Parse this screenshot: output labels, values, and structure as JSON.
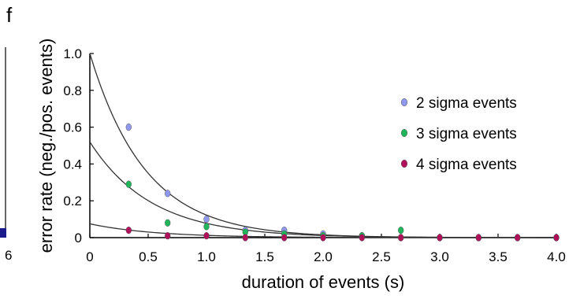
{
  "panel_letter": "f",
  "neighbor_fragment": {
    "tick_labels": [
      "6"
    ],
    "bar_color": "#1a1a8c"
  },
  "chart_data": {
    "type": "scatter",
    "title": "",
    "xlabel": "duration of events (s)",
    "ylabel": "error rate (neg./pos. events)",
    "xlim": [
      0,
      4.0
    ],
    "ylim": [
      0,
      1.0
    ],
    "x_ticks": [
      0,
      0.5,
      1.0,
      1.5,
      2.0,
      2.5,
      3.0,
      3.5,
      4.0
    ],
    "x_tick_labels": [
      "0",
      "0.5",
      "1.0",
      "1.5",
      "2.0",
      "2.5",
      "3.0",
      "3.5",
      "4.0"
    ],
    "y_ticks": [
      0,
      0.2,
      0.4,
      0.6,
      0.8,
      1.0
    ],
    "y_tick_labels": [
      "0",
      "0.2",
      "0.4",
      "0.6",
      "0.8",
      "1.0"
    ],
    "grid": false,
    "legend_position": "right",
    "series": [
      {
        "name": "2 sigma events",
        "color": "#8f97ee",
        "x": [
          0.333,
          0.667,
          1.0,
          1.333,
          1.667,
          2.0,
          2.333,
          2.667,
          3.0,
          3.333,
          3.667,
          4.0
        ],
        "y": [
          0.6,
          0.24,
          0.1,
          0.04,
          0.04,
          0.02,
          0.01,
          0.0,
          0.0,
          0.0,
          0.0,
          0.0
        ],
        "fit": {
          "a": 1.0,
          "k": 2.1
        }
      },
      {
        "name": "3 sigma events",
        "color": "#22b45a",
        "x": [
          0.333,
          0.667,
          1.0,
          1.333,
          1.667,
          2.0,
          2.333,
          2.667,
          3.0,
          3.333,
          3.667,
          4.0
        ],
        "y": [
          0.29,
          0.08,
          0.06,
          0.03,
          0.02,
          0.01,
          0.01,
          0.04,
          0.0,
          0.0,
          0.0,
          0.0
        ],
        "fit": {
          "a": 0.52,
          "k": 1.9
        }
      },
      {
        "name": "4 sigma events",
        "color": "#b0105a",
        "x": [
          0.333,
          0.667,
          1.0,
          1.333,
          1.667,
          2.0,
          2.333,
          2.667,
          3.0,
          3.333,
          3.667,
          4.0
        ],
        "y": [
          0.04,
          0.01,
          0.01,
          0.0,
          0.0,
          0.0,
          0.0,
          0.0,
          0.0,
          0.0,
          0.0,
          0.0
        ],
        "fit": {
          "a": 0.075,
          "k": 1.8
        }
      }
    ]
  }
}
